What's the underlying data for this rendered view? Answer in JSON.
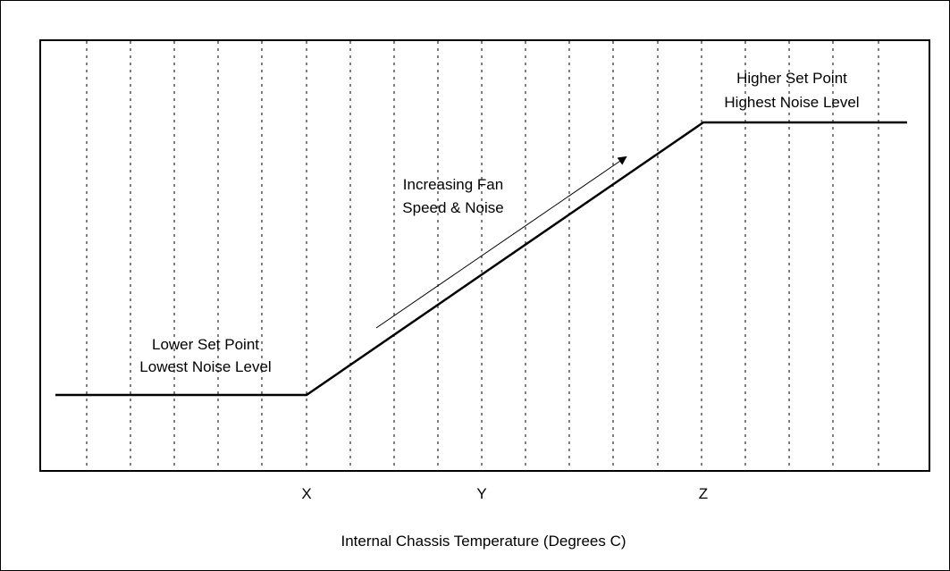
{
  "diagram": {
    "region_labels": {
      "lower": {
        "line1": "Lower Set Point",
        "line2": "Lowest Noise Level"
      },
      "higher": {
        "line1": "Higher Set Point",
        "line2": "Highest Noise Level"
      },
      "ramp": {
        "line1": "Increasing Fan",
        "line2": "Speed & Noise"
      }
    },
    "x_ticks": [
      "X",
      "Y",
      "Z"
    ],
    "x_axis_title": "Internal Chassis Temperature (Degrees C)",
    "grid": "dotted vertical lines",
    "colors": {
      "line": "#000000",
      "background": "#ffffff"
    }
  }
}
